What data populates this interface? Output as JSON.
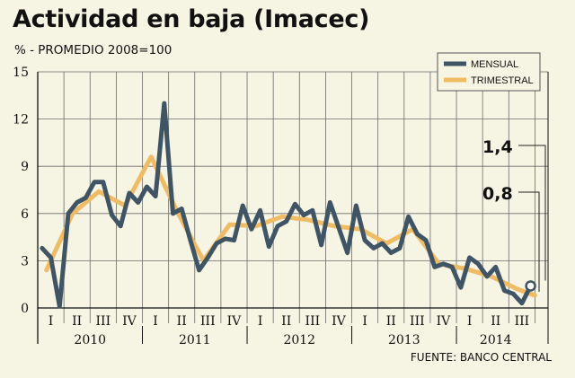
{
  "header": {
    "title": "Actividad en baja (Imacec)",
    "subtitle": "% - PROMEDIO 2008=100",
    "source": "FUENTE: BANCO CENTRAL"
  },
  "colors": {
    "mensual": "#3f5566",
    "trimestral": "#f0bc63",
    "background": "#f6f4e3",
    "grid": "#6b6b6b"
  },
  "chart_data": {
    "type": "line",
    "title": "Actividad en baja (Imacec)",
    "ylabel": "% - PROMEDIO 2008=100",
    "ylim": [
      0,
      15
    ],
    "yticks": [
      0,
      3,
      6,
      9,
      12,
      15
    ],
    "grid": true,
    "legend_position": "top-right",
    "quarters": [
      "I",
      "II",
      "III",
      "IV",
      "I",
      "II",
      "III",
      "IV",
      "I",
      "II",
      "III",
      "IV",
      "I",
      "II",
      "III",
      "IV",
      "I",
      "II",
      "III"
    ],
    "years": [
      "2010",
      "2011",
      "2012",
      "2013",
      "2014"
    ],
    "x_start": "2010-01",
    "series": [
      {
        "name": "MENSUAL",
        "values": [
          3.8,
          3.2,
          0.1,
          6.0,
          6.7,
          7.0,
          8.0,
          8.0,
          5.9,
          5.2,
          7.3,
          6.7,
          7.7,
          7.1,
          13.0,
          6.0,
          6.3,
          4.3,
          2.4,
          3.2,
          4.1,
          4.4,
          4.3,
          6.5,
          5.0,
          6.2,
          3.9,
          5.2,
          5.5,
          6.6,
          5.9,
          6.2,
          4.0,
          6.7,
          5.1,
          3.5,
          6.5,
          4.3,
          3.8,
          4.1,
          3.5,
          3.8,
          5.8,
          4.7,
          4.3,
          2.6,
          2.8,
          2.6,
          1.3,
          3.2,
          2.8,
          2.0,
          2.6,
          1.1,
          0.9,
          0.3,
          1.4
        ]
      },
      {
        "name": "TRIMESTRAL",
        "points": [
          [
            1,
            2.4
          ],
          [
            4,
            6.0
          ],
          [
            7,
            7.4
          ],
          [
            10,
            6.5
          ],
          [
            13,
            9.6
          ],
          [
            16,
            6.1
          ],
          [
            19,
            3.0
          ],
          [
            22,
            5.3
          ],
          [
            25,
            5.2
          ],
          [
            28,
            5.8
          ],
          [
            31,
            5.6
          ],
          [
            34,
            5.2
          ],
          [
            37,
            5.0
          ],
          [
            40,
            4.1
          ],
          [
            43,
            5.0
          ],
          [
            46,
            2.8
          ],
          [
            49,
            2.5
          ],
          [
            52,
            2.0
          ],
          [
            55,
            1.2
          ],
          [
            57,
            0.8
          ]
        ]
      }
    ],
    "annotations": [
      {
        "label": "1,4",
        "series": "MENSUAL",
        "value": 1.4
      },
      {
        "label": "0,8",
        "series": "TRIMESTRAL",
        "value": 0.8
      }
    ]
  }
}
